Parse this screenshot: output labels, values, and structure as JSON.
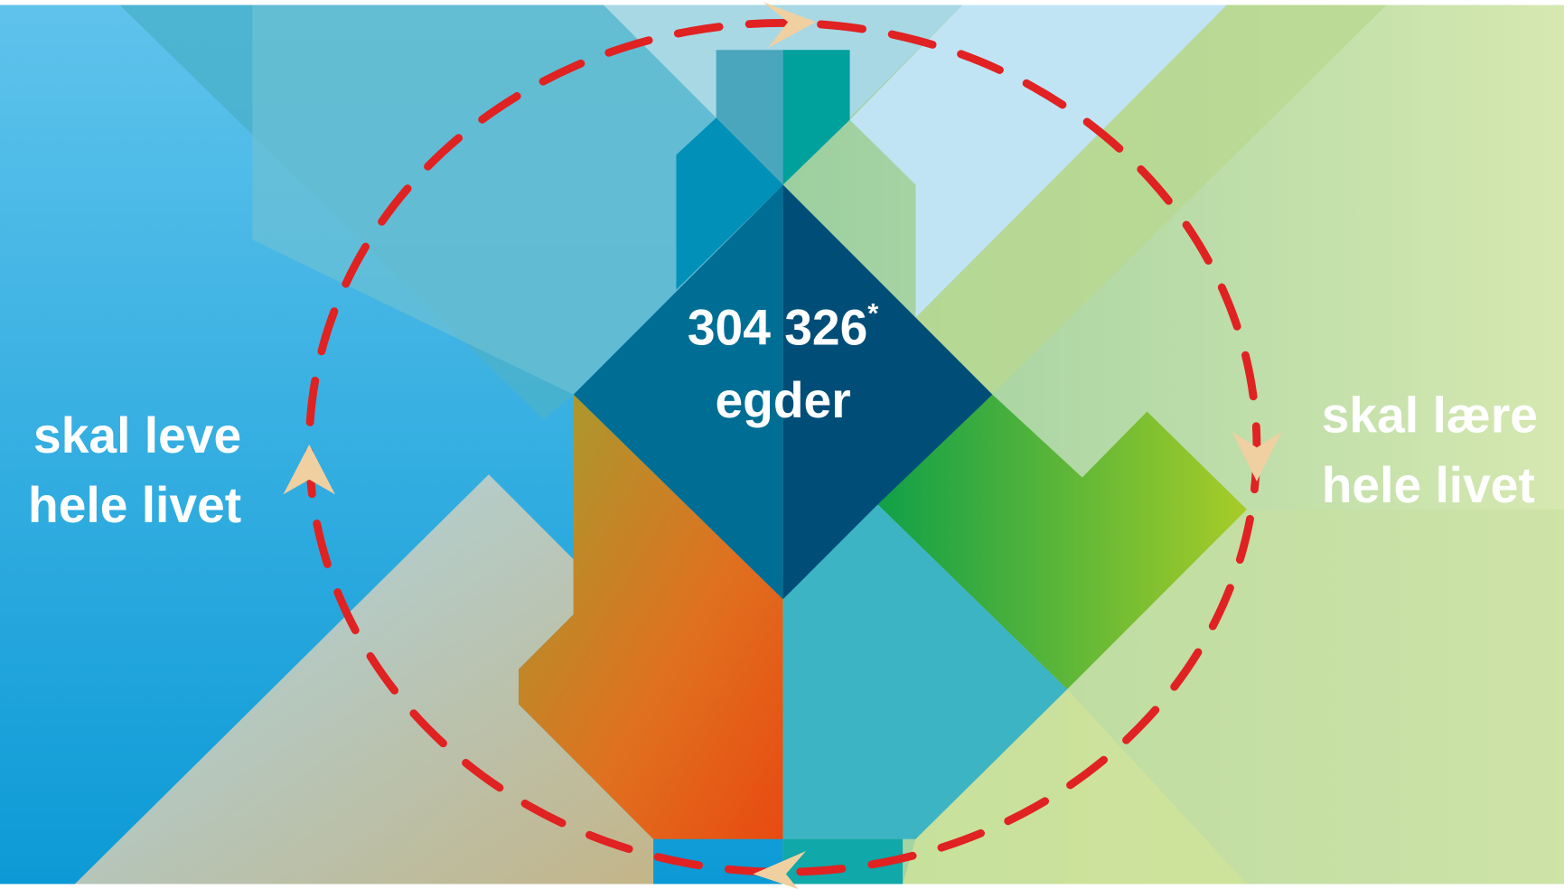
{
  "center": {
    "value": "304 326",
    "footnote_mark": "*",
    "unit": "egder"
  },
  "left_label": {
    "line1": "skal leve",
    "line2": "hele livet"
  },
  "right_label": {
    "line1": "skal lære",
    "line2": "hele livet"
  }
}
